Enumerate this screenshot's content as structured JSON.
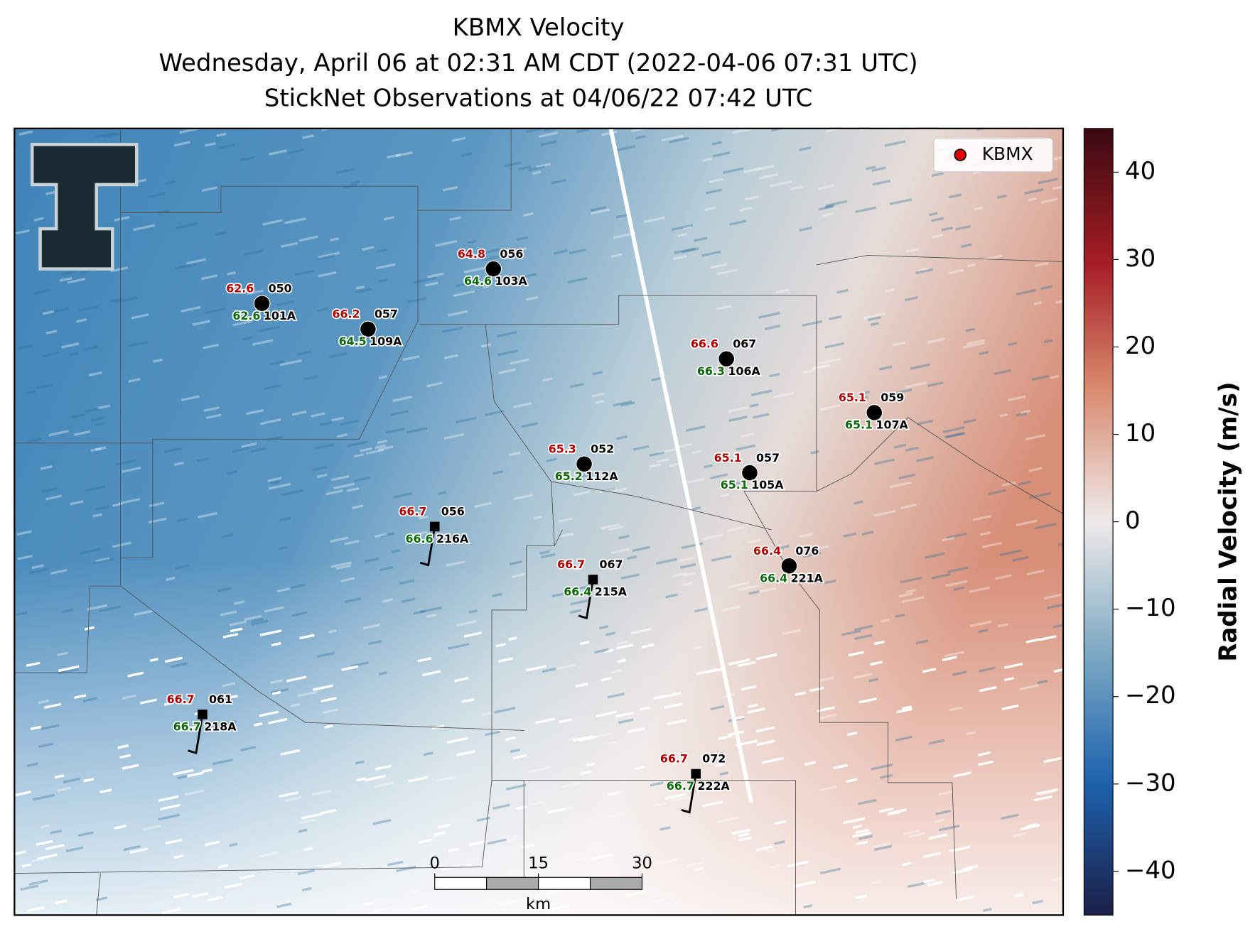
{
  "header": {
    "title": "KBMX Velocity",
    "subtitle": "Wednesday, April 06 at 02:31 AM CDT (2022-04-06 07:31 UTC)",
    "observations": "StickNet Observations at 04/06/22 07:42 UTC"
  },
  "legend": {
    "label": "KBMX",
    "color": "#e00000"
  },
  "stations": [
    {
      "id": "101A",
      "temp": "62.6",
      "dewpoint": "62.6",
      "direction": "050",
      "marker": "circle"
    },
    {
      "id": "109A",
      "temp": "66.2",
      "dewpoint": "64.5",
      "direction": "057",
      "marker": "circle"
    },
    {
      "id": "103A",
      "temp": "64.8",
      "dewpoint": "64.6",
      "direction": "056",
      "marker": "circle"
    },
    {
      "id": "106A",
      "temp": "66.6",
      "dewpoint": "66.3",
      "direction": "067",
      "marker": "circle"
    },
    {
      "id": "107A",
      "temp": "65.1",
      "dewpoint": "65.1",
      "direction": "059",
      "marker": "circle"
    },
    {
      "id": "112A",
      "temp": "65.3",
      "dewpoint": "65.2",
      "direction": "052",
      "marker": "circle"
    },
    {
      "id": "105A",
      "temp": "65.1",
      "dewpoint": "65.1",
      "direction": "057",
      "marker": "circle"
    },
    {
      "id": "216A",
      "temp": "66.7",
      "dewpoint": "66.6",
      "direction": "056",
      "marker": "square"
    },
    {
      "id": "215A",
      "temp": "66.7",
      "dewpoint": "66.4",
      "direction": "067",
      "marker": "square"
    },
    {
      "id": "221A",
      "temp": "66.4",
      "dewpoint": "66.4",
      "direction": "076",
      "marker": "circle"
    },
    {
      "id": "218A",
      "temp": "66.7",
      "dewpoint": "66.7",
      "direction": "061",
      "marker": "square"
    },
    {
      "id": "222A",
      "temp": "66.7",
      "dewpoint": "66.7",
      "direction": "072",
      "marker": "square"
    }
  ],
  "colorbar": {
    "label": "Radial Velocity (m/s)",
    "lim": [
      -45,
      45
    ],
    "ticks": [
      {
        "value": -40,
        "label": "−40"
      },
      {
        "value": -30,
        "label": "−30"
      },
      {
        "value": -20,
        "label": "−20"
      },
      {
        "value": -10,
        "label": "−10"
      },
      0,
      10,
      20,
      30,
      40
    ]
  },
  "scale_bar": {
    "unit": "km",
    "lim": [
      0,
      30
    ],
    "ticks": [
      0,
      15,
      30
    ]
  }
}
